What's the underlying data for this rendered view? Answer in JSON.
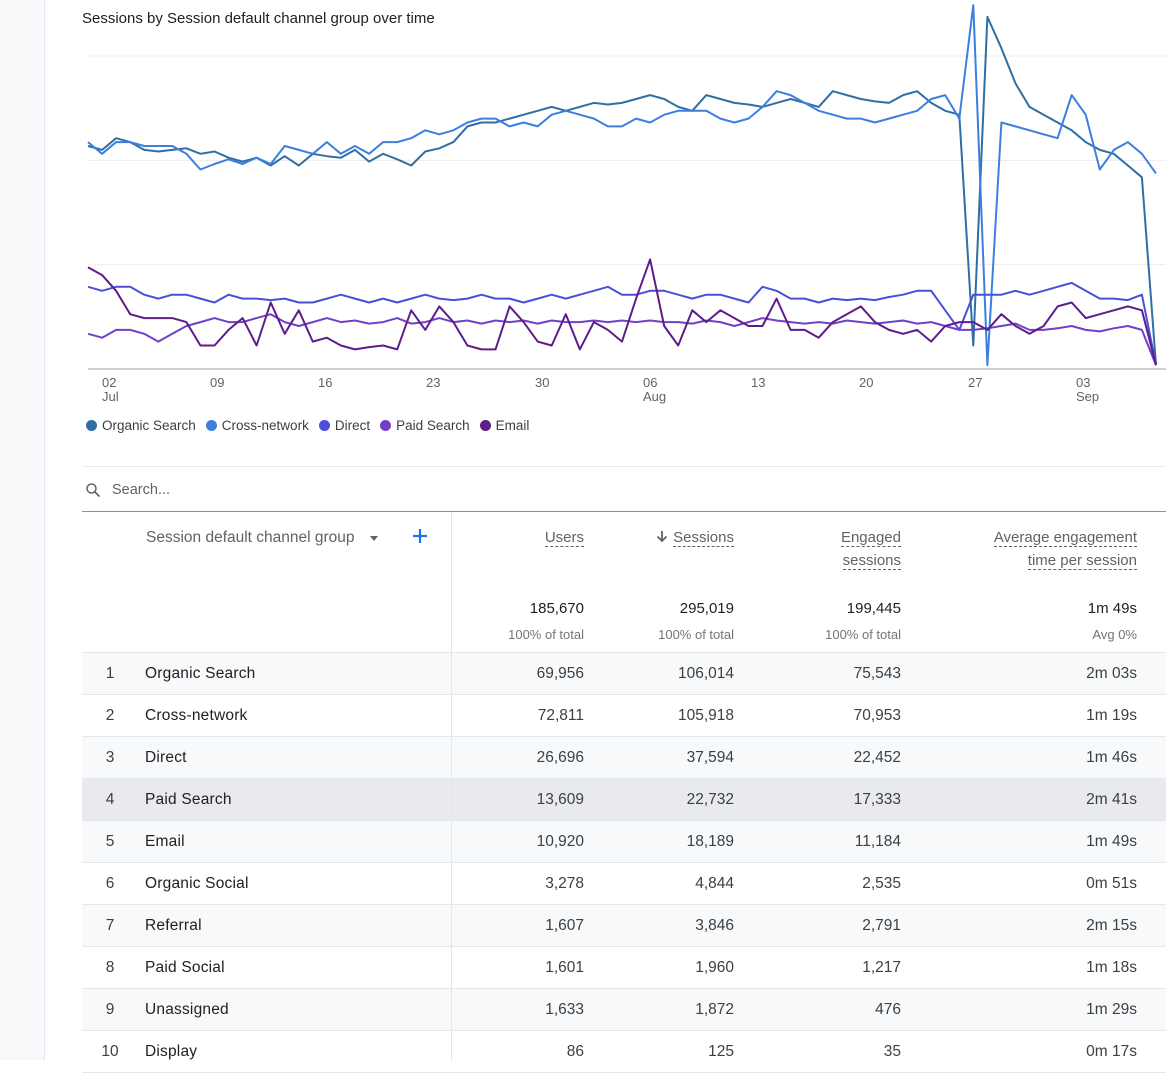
{
  "chart": {
    "title": "Sessions by Session default channel group over time",
    "legend": [
      {
        "label": "Organic Search",
        "color": "#2f6fa5"
      },
      {
        "label": "Cross-network",
        "color": "#3c7fe0"
      },
      {
        "label": "Direct",
        "color": "#4b4fd8"
      },
      {
        "label": "Paid Search",
        "color": "#7040c8"
      },
      {
        "label": "Email",
        "color": "#5e1d8a"
      }
    ]
  },
  "chart_data": {
    "type": "line",
    "title": "Sessions by Session default channel group over time",
    "x_tick_labels": [
      {
        "day": "02",
        "month": "Jul"
      },
      {
        "day": "09",
        "month": ""
      },
      {
        "day": "16",
        "month": ""
      },
      {
        "day": "23",
        "month": ""
      },
      {
        "day": "30",
        "month": ""
      },
      {
        "day": "06",
        "month": "Aug"
      },
      {
        "day": "13",
        "month": ""
      },
      {
        "day": "20",
        "month": ""
      },
      {
        "day": "27",
        "month": ""
      },
      {
        "day": "03",
        "month": "Sep"
      }
    ],
    "x_range": [
      "Jul 01",
      "Sep 07"
    ],
    "y_range": [
      0,
      4
    ],
    "grid": true,
    "legend_position": "bottom-left",
    "series": [
      {
        "name": "Organic Search",
        "values": [
          2.85,
          2.8,
          2.95,
          2.9,
          2.8,
          2.78,
          2.8,
          2.82,
          2.75,
          2.78,
          2.7,
          2.65,
          2.7,
          2.6,
          2.72,
          2.6,
          2.75,
          2.72,
          2.7,
          2.8,
          2.65,
          2.75,
          2.68,
          2.6,
          2.78,
          2.82,
          2.9,
          3.1,
          3.15,
          3.15,
          3.2,
          3.25,
          3.3,
          3.35,
          3.3,
          3.35,
          3.4,
          3.38,
          3.4,
          3.45,
          3.5,
          3.45,
          3.35,
          3.3,
          3.5,
          3.45,
          3.4,
          3.38,
          3.35,
          3.4,
          3.45,
          3.4,
          3.35,
          3.55,
          3.5,
          3.45,
          3.42,
          3.4,
          3.5,
          3.55,
          3.4,
          3.3,
          3.25,
          0.3,
          4.5,
          4.1,
          3.65,
          3.35,
          3.25,
          3.15,
          3.05,
          2.9,
          2.8,
          2.75,
          2.6,
          2.45,
          0.05
        ]
      },
      {
        "name": "Cross-network",
        "values": [
          2.9,
          2.75,
          2.9,
          2.9,
          2.85,
          2.85,
          2.85,
          2.75,
          2.55,
          2.62,
          2.68,
          2.62,
          2.7,
          2.62,
          2.85,
          2.8,
          2.75,
          2.9,
          2.75,
          2.85,
          2.75,
          2.9,
          2.9,
          2.95,
          3.05,
          3.0,
          3.05,
          3.15,
          3.2,
          3.2,
          3.1,
          3.15,
          3.1,
          3.25,
          3.3,
          3.25,
          3.2,
          3.1,
          3.1,
          3.2,
          3.15,
          3.25,
          3.3,
          3.3,
          3.3,
          3.2,
          3.15,
          3.2,
          3.35,
          3.55,
          3.5,
          3.4,
          3.3,
          3.25,
          3.2,
          3.2,
          3.15,
          3.2,
          3.25,
          3.3,
          3.45,
          3.5,
          3.2,
          4.65,
          0.05,
          3.15,
          3.1,
          3.05,
          3.0,
          2.95,
          3.5,
          3.25,
          2.55,
          2.8,
          2.9,
          2.75,
          2.5
        ]
      },
      {
        "name": "Direct",
        "values": [
          1.05,
          1.0,
          1.05,
          1.05,
          0.95,
          0.9,
          0.95,
          0.95,
          0.9,
          0.85,
          0.95,
          0.9,
          0.9,
          0.88,
          0.9,
          0.85,
          0.85,
          0.9,
          0.95,
          0.9,
          0.85,
          0.9,
          0.85,
          0.9,
          0.95,
          0.9,
          0.88,
          0.9,
          0.95,
          0.9,
          0.9,
          0.85,
          0.9,
          0.95,
          0.9,
          0.95,
          1.0,
          1.05,
          0.95,
          0.95,
          1.0,
          1.0,
          0.95,
          0.9,
          0.95,
          0.95,
          0.9,
          0.85,
          1.05,
          1.0,
          0.9,
          0.9,
          0.85,
          0.9,
          0.88,
          0.9,
          0.88,
          0.92,
          0.95,
          1.0,
          1.0,
          0.75,
          0.5,
          0.95,
          0.95,
          0.95,
          1.0,
          0.95,
          1.0,
          1.05,
          1.1,
          1.0,
          0.9,
          0.9,
          0.88,
          0.95,
          0.05
        ]
      },
      {
        "name": "Paid Search",
        "values": [
          0.45,
          0.4,
          0.5,
          0.5,
          0.45,
          0.35,
          0.45,
          0.55,
          0.6,
          0.65,
          0.6,
          0.6,
          0.65,
          0.7,
          0.6,
          0.55,
          0.6,
          0.65,
          0.6,
          0.62,
          0.58,
          0.6,
          0.65,
          0.58,
          0.6,
          0.65,
          0.6,
          0.62,
          0.58,
          0.62,
          0.6,
          0.62,
          0.58,
          0.62,
          0.6,
          0.6,
          0.62,
          0.6,
          0.62,
          0.6,
          0.62,
          0.6,
          0.6,
          0.58,
          0.62,
          0.6,
          0.55,
          0.6,
          0.65,
          0.62,
          0.6,
          0.58,
          0.6,
          0.58,
          0.62,
          0.6,
          0.58,
          0.6,
          0.62,
          0.58,
          0.6,
          0.55,
          0.5,
          0.5,
          0.52,
          0.55,
          0.58,
          0.5,
          0.5,
          0.52,
          0.55,
          0.5,
          0.48,
          0.52,
          0.55,
          0.5,
          0.05
        ]
      },
      {
        "name": "Email",
        "values": [
          1.3,
          1.2,
          1.0,
          0.7,
          0.65,
          0.65,
          0.65,
          0.6,
          0.3,
          0.3,
          0.5,
          0.65,
          0.3,
          0.85,
          0.45,
          0.75,
          0.35,
          0.4,
          0.3,
          0.25,
          0.28,
          0.3,
          0.25,
          0.75,
          0.5,
          0.8,
          0.6,
          0.3,
          0.25,
          0.25,
          0.8,
          0.6,
          0.35,
          0.3,
          0.7,
          0.25,
          0.6,
          0.5,
          0.35,
          0.9,
          1.4,
          0.55,
          0.3,
          0.75,
          0.6,
          0.75,
          0.65,
          0.55,
          0.55,
          0.9,
          0.5,
          0.5,
          0.4,
          0.6,
          0.7,
          0.8,
          0.6,
          0.5,
          0.45,
          0.5,
          0.35,
          0.55,
          0.6,
          0.6,
          0.5,
          0.7,
          0.55,
          0.45,
          0.55,
          0.8,
          0.85,
          0.65,
          0.7,
          0.75,
          0.8,
          0.75,
          0.05
        ]
      }
    ]
  },
  "search": {
    "placeholder": "Search..."
  },
  "table": {
    "dimension_header": "Session default channel group",
    "columns": [
      {
        "label_lines": [
          "Users"
        ],
        "sorted": false
      },
      {
        "label_lines": [
          "Sessions"
        ],
        "sorted": true
      },
      {
        "label_lines": [
          "Engaged",
          "sessions"
        ],
        "sorted": false
      },
      {
        "label_lines": [
          "Average engagement",
          "time per session"
        ],
        "sorted": false
      }
    ],
    "totals": {
      "values": [
        "185,670",
        "295,019",
        "199,445",
        "1m 49s"
      ],
      "subs": [
        "100% of total",
        "100% of total",
        "100% of total",
        "Avg 0%"
      ]
    },
    "rows": [
      {
        "idx": "1",
        "name": "Organic Search",
        "c1": "69,956",
        "c2": "106,014",
        "c3": "75,543",
        "c4": "2m 03s"
      },
      {
        "idx": "2",
        "name": "Cross-network",
        "c1": "72,811",
        "c2": "105,918",
        "c3": "70,953",
        "c4": "1m 19s"
      },
      {
        "idx": "3",
        "name": "Direct",
        "c1": "26,696",
        "c2": "37,594",
        "c3": "22,452",
        "c4": "1m 46s"
      },
      {
        "idx": "4",
        "name": "Paid Search",
        "c1": "13,609",
        "c2": "22,732",
        "c3": "17,333",
        "c4": "2m 41s"
      },
      {
        "idx": "5",
        "name": "Email",
        "c1": "10,920",
        "c2": "18,189",
        "c3": "11,184",
        "c4": "1m 49s"
      },
      {
        "idx": "6",
        "name": "Organic Social",
        "c1": "3,278",
        "c2": "4,844",
        "c3": "2,535",
        "c4": "0m 51s"
      },
      {
        "idx": "7",
        "name": "Referral",
        "c1": "1,607",
        "c2": "3,846",
        "c3": "2,791",
        "c4": "2m 15s"
      },
      {
        "idx": "8",
        "name": "Paid Social",
        "c1": "1,601",
        "c2": "1,960",
        "c3": "1,217",
        "c4": "1m 18s"
      },
      {
        "idx": "9",
        "name": "Unassigned",
        "c1": "1,633",
        "c2": "1,872",
        "c3": "476",
        "c4": "1m 29s"
      },
      {
        "idx": "10",
        "name": "Display",
        "c1": "86",
        "c2": "125",
        "c3": "35",
        "c4": "0m 17s"
      }
    ]
  }
}
